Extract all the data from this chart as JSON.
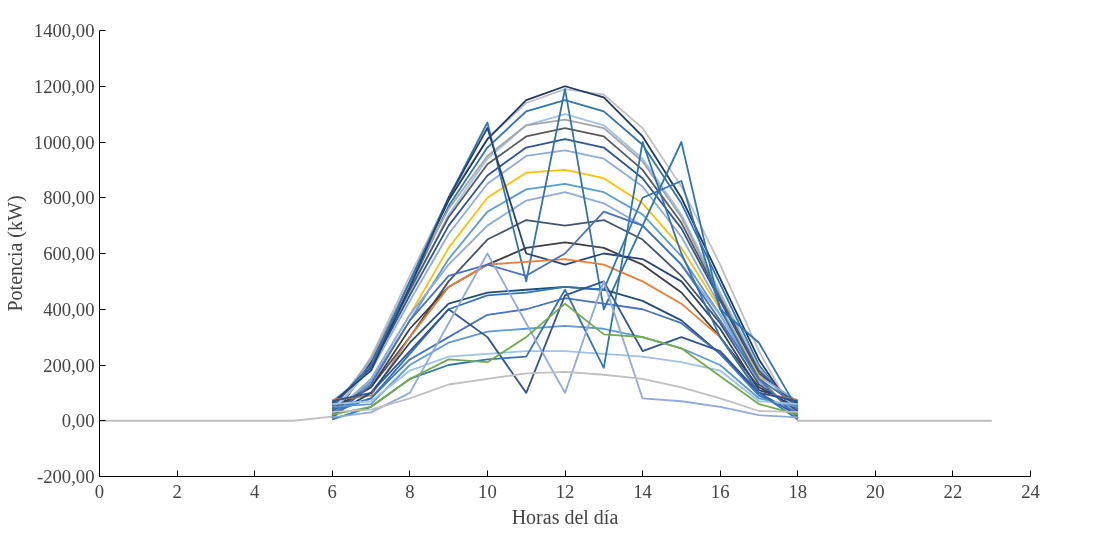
{
  "chart_data": {
    "type": "line",
    "xlabel": "Horas del día",
    "ylabel": "Potencia (kW)",
    "xlim": [
      0,
      24
    ],
    "ylim": [
      -200,
      1400
    ],
    "xticks": [
      0,
      2,
      4,
      6,
      8,
      10,
      12,
      14,
      16,
      18,
      20,
      22,
      24
    ],
    "yticks": [
      {
        "value": -200,
        "label": "-200,00"
      },
      {
        "value": 0,
        "label": "0,00"
      },
      {
        "value": 200,
        "label": "200,00"
      },
      {
        "value": 400,
        "label": "400,00"
      },
      {
        "value": 600,
        "label": "600,00"
      },
      {
        "value": 800,
        "label": "800,00"
      },
      {
        "value": 1000,
        "label": "1000,00"
      },
      {
        "value": 1200,
        "label": "1200,00"
      },
      {
        "value": 1400,
        "label": "1400,00"
      }
    ],
    "grid": false,
    "line_style": "solid",
    "x": [
      0,
      1,
      2,
      3,
      4,
      5,
      6,
      7,
      8,
      9,
      10,
      11,
      12,
      13,
      14,
      15,
      16,
      17,
      18,
      19,
      20,
      21,
      22,
      23
    ],
    "series": [
      {
        "color": "#bfbfbf",
        "values": [
          0,
          0,
          0,
          0,
          0,
          0,
          15,
          230,
          520,
          800,
          1010,
          1140,
          1190,
          1170,
          1050,
          840,
          560,
          250,
          0,
          0,
          0,
          0,
          0,
          0
        ]
      },
      {
        "color": "#1f3864",
        "values": [
          null,
          null,
          null,
          null,
          null,
          null,
          10,
          210,
          500,
          790,
          1010,
          1150,
          1200,
          1160,
          1020,
          800,
          510,
          220,
          10,
          null,
          null,
          null,
          null,
          null
        ]
      },
      {
        "color": "#2e75b6",
        "values": [
          null,
          null,
          null,
          null,
          null,
          null,
          20,
          200,
          480,
          770,
          980,
          1110,
          1150,
          1110,
          990,
          780,
          490,
          200,
          20,
          null,
          null,
          null,
          null,
          null
        ]
      },
      {
        "color": "#9dc3e6",
        "values": [
          null,
          null,
          null,
          null,
          null,
          null,
          30,
          190,
          460,
          740,
          940,
          1060,
          1100,
          1060,
          940,
          740,
          460,
          190,
          30,
          null,
          null,
          null,
          null,
          null
        ]
      },
      {
        "color": "#a5a5a5",
        "values": [
          null,
          null,
          null,
          null,
          null,
          null,
          40,
          220,
          500,
          760,
          950,
          1060,
          1080,
          1050,
          930,
          730,
          450,
          180,
          40,
          null,
          null,
          null,
          null,
          null
        ]
      },
      {
        "color": "#595959",
        "values": [
          null,
          null,
          null,
          null,
          null,
          null,
          50,
          200,
          470,
          730,
          920,
          1020,
          1050,
          1020,
          900,
          710,
          440,
          180,
          50,
          null,
          null,
          null,
          null,
          null
        ]
      },
      {
        "color": "#2f5597",
        "values": [
          null,
          null,
          null,
          null,
          null,
          null,
          60,
          190,
          450,
          700,
          880,
          980,
          1010,
          980,
          870,
          690,
          430,
          170,
          60,
          null,
          null,
          null,
          null,
          null
        ]
      },
      {
        "color": "#8faadc",
        "values": [
          null,
          null,
          null,
          null,
          null,
          null,
          70,
          180,
          430,
          670,
          850,
          950,
          970,
          940,
          840,
          660,
          410,
          160,
          70,
          null,
          null,
          null,
          null,
          null
        ]
      },
      {
        "color": "#ffc000",
        "values": [
          null,
          null,
          null,
          null,
          null,
          null,
          5,
          150,
          380,
          620,
          800,
          890,
          900,
          870,
          780,
          620,
          400,
          160,
          5,
          null,
          null,
          null,
          null,
          null
        ]
      },
      {
        "color": "#5b9bd5",
        "values": [
          null,
          null,
          null,
          null,
          null,
          null,
          15,
          140,
          360,
          580,
          750,
          830,
          850,
          820,
          740,
          590,
          380,
          150,
          15,
          null,
          null,
          null,
          null,
          null
        ]
      },
      {
        "color": "#8faadc",
        "values": [
          null,
          null,
          null,
          null,
          null,
          null,
          25,
          150,
          380,
          560,
          700,
          790,
          820,
          780,
          700,
          560,
          380,
          140,
          25,
          null,
          null,
          null,
          null,
          null
        ]
      },
      {
        "color": "#44546a",
        "values": [
          null,
          null,
          null,
          null,
          null,
          null,
          35,
          120,
          300,
          500,
          650,
          720,
          700,
          720,
          650,
          520,
          350,
          130,
          35,
          null,
          null,
          null,
          null,
          null
        ]
      },
      {
        "color": "#404040",
        "values": [
          null,
          null,
          null,
          null,
          null,
          null,
          45,
          120,
          330,
          480,
          560,
          620,
          640,
          620,
          560,
          460,
          300,
          120,
          45,
          null,
          null,
          null,
          null,
          null
        ]
      },
      {
        "color": "#2e75b6",
        "values": [
          null,
          null,
          null,
          null,
          null,
          null,
          55,
          200,
          500,
          800,
          1070,
          500,
          1190,
          400,
          700,
          1000,
          400,
          150,
          55,
          null,
          null,
          null,
          null,
          null
        ]
      },
      {
        "color": "#264478",
        "values": [
          null,
          null,
          null,
          null,
          null,
          null,
          65,
          180,
          480,
          800,
          1050,
          600,
          560,
          600,
          580,
          500,
          330,
          110,
          65,
          null,
          null,
          null,
          null,
          null
        ]
      },
      {
        "color": "#ed7d31",
        "values": [
          null,
          null,
          null,
          null,
          null,
          null,
          75,
          90,
          300,
          480,
          560,
          570,
          580,
          560,
          500,
          420,
          300,
          100,
          75,
          null,
          null,
          null,
          null,
          null
        ]
      },
      {
        "color": "#4472c4",
        "values": [
          null,
          null,
          null,
          null,
          null,
          null,
          10,
          130,
          360,
          520,
          560,
          520,
          600,
          750,
          700,
          560,
          360,
          150,
          10,
          null,
          null,
          null,
          null,
          null
        ]
      },
      {
        "color": "#1f4e79",
        "values": [
          null,
          null,
          null,
          null,
          null,
          null,
          20,
          100,
          280,
          420,
          460,
          470,
          480,
          470,
          430,
          360,
          240,
          100,
          20,
          null,
          null,
          null,
          null,
          null
        ]
      },
      {
        "color": "#4472c4",
        "values": [
          null,
          null,
          null,
          null,
          null,
          null,
          30,
          80,
          220,
          300,
          380,
          400,
          440,
          420,
          400,
          350,
          240,
          90,
          30,
          null,
          null,
          null,
          null,
          null
        ]
      },
      {
        "color": "#2e75b6",
        "values": [
          null,
          null,
          null,
          null,
          null,
          null,
          40,
          80,
          240,
          400,
          450,
          460,
          480,
          470,
          800,
          860,
          400,
          280,
          40,
          null,
          null,
          null,
          null,
          null
        ]
      },
      {
        "color": "#5b9bd5",
        "values": [
          null,
          null,
          null,
          null,
          null,
          null,
          50,
          60,
          200,
          280,
          320,
          330,
          340,
          330,
          300,
          260,
          200,
          80,
          50,
          null,
          null,
          null,
          null,
          null
        ]
      },
      {
        "color": "#9dc3e6",
        "values": [
          null,
          null,
          null,
          null,
          null,
          null,
          60,
          70,
          180,
          230,
          240,
          250,
          250,
          240,
          230,
          210,
          180,
          70,
          60,
          null,
          null,
          null,
          null,
          null
        ]
      },
      {
        "color": "#2f5597",
        "values": [
          null,
          null,
          null,
          null,
          null,
          null,
          70,
          100,
          250,
          400,
          300,
          100,
          450,
          500,
          250,
          300,
          250,
          100,
          70,
          null,
          null,
          null,
          null,
          null
        ]
      },
      {
        "color": "#2e75b6",
        "values": [
          null,
          null,
          null,
          null,
          null,
          null,
          5,
          50,
          150,
          200,
          220,
          230,
          470,
          190,
          1000,
          600,
          300,
          100,
          5,
          null,
          null,
          null,
          null,
          null
        ]
      },
      {
        "color": "#8faadc",
        "values": [
          null,
          null,
          null,
          null,
          null,
          null,
          12,
          30,
          100,
          350,
          600,
          350,
          100,
          500,
          80,
          70,
          50,
          20,
          12,
          null,
          null,
          null,
          null,
          null
        ]
      },
      {
        "color": "#70ad47",
        "values": [
          null,
          null,
          null,
          null,
          null,
          null,
          22,
          50,
          150,
          220,
          210,
          300,
          420,
          310,
          300,
          260,
          160,
          60,
          22,
          null,
          null,
          null,
          null,
          null
        ]
      },
      {
        "color": "#bfbfbf",
        "values": [
          null,
          null,
          null,
          null,
          null,
          null,
          32,
          40,
          80,
          130,
          150,
          170,
          175,
          165,
          150,
          120,
          80,
          35,
          32,
          null,
          null,
          null,
          null,
          null
        ]
      }
    ]
  }
}
